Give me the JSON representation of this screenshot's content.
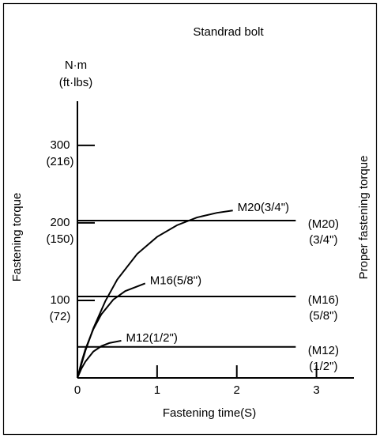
{
  "chart_data": {
    "type": "line",
    "title": "Standrad bolt",
    "x_label": "Fastening time(S)",
    "y_label": "Fastening torque",
    "y2_label": "Proper fastening torque",
    "y_unit": [
      "N·m",
      "(ft·lbs)"
    ],
    "xlim": [
      0,
      3.47
    ],
    "ylim": [
      0,
      357
    ],
    "xticks": [
      0,
      1,
      2,
      3
    ],
    "yticks": [
      {
        "value": 100,
        "label": [
          "100",
          "(72)"
        ]
      },
      {
        "value": 200,
        "label": [
          "200",
          "(150)"
        ]
      },
      {
        "value": 300,
        "label": [
          "300",
          "(216)"
        ]
      }
    ],
    "color": "#000000",
    "series": [
      {
        "name": "M20(3/4\")",
        "x": [
          0,
          0.1,
          0.2,
          0.35,
          0.5,
          0.75,
          1,
          1.25,
          1.5,
          1.75,
          1.95
        ],
        "values": [
          0,
          35,
          64,
          99,
          127,
          160,
          182,
          197,
          207,
          213,
          216
        ]
      },
      {
        "name": "M16(5/8\")",
        "x": [
          0,
          0.05,
          0.1,
          0.2,
          0.3,
          0.45,
          0.6,
          0.85
        ],
        "values": [
          0,
          20,
          37,
          63,
          82,
          101,
          112,
          122
        ]
      },
      {
        "name": "M12(1/2\")",
        "x": [
          0,
          0.05,
          0.1,
          0.2,
          0.3,
          0.4,
          0.55
        ],
        "values": [
          0,
          12,
          21,
          34,
          41,
          45,
          48
        ]
      }
    ],
    "reference_lines": [
      {
        "label": [
          "(M20)",
          "(3/4\")"
        ],
        "x": [
          0,
          2.74
        ],
        "values": [
          203,
          203
        ]
      },
      {
        "label": [
          "(M16)",
          "(5/8\")"
        ],
        "x": [
          0,
          2.74
        ],
        "values": [
          105,
          105
        ]
      },
      {
        "label": [
          "(M12)",
          "(1/2\")"
        ],
        "x": [
          0,
          2.74
        ],
        "values": [
          40,
          40
        ]
      }
    ]
  }
}
